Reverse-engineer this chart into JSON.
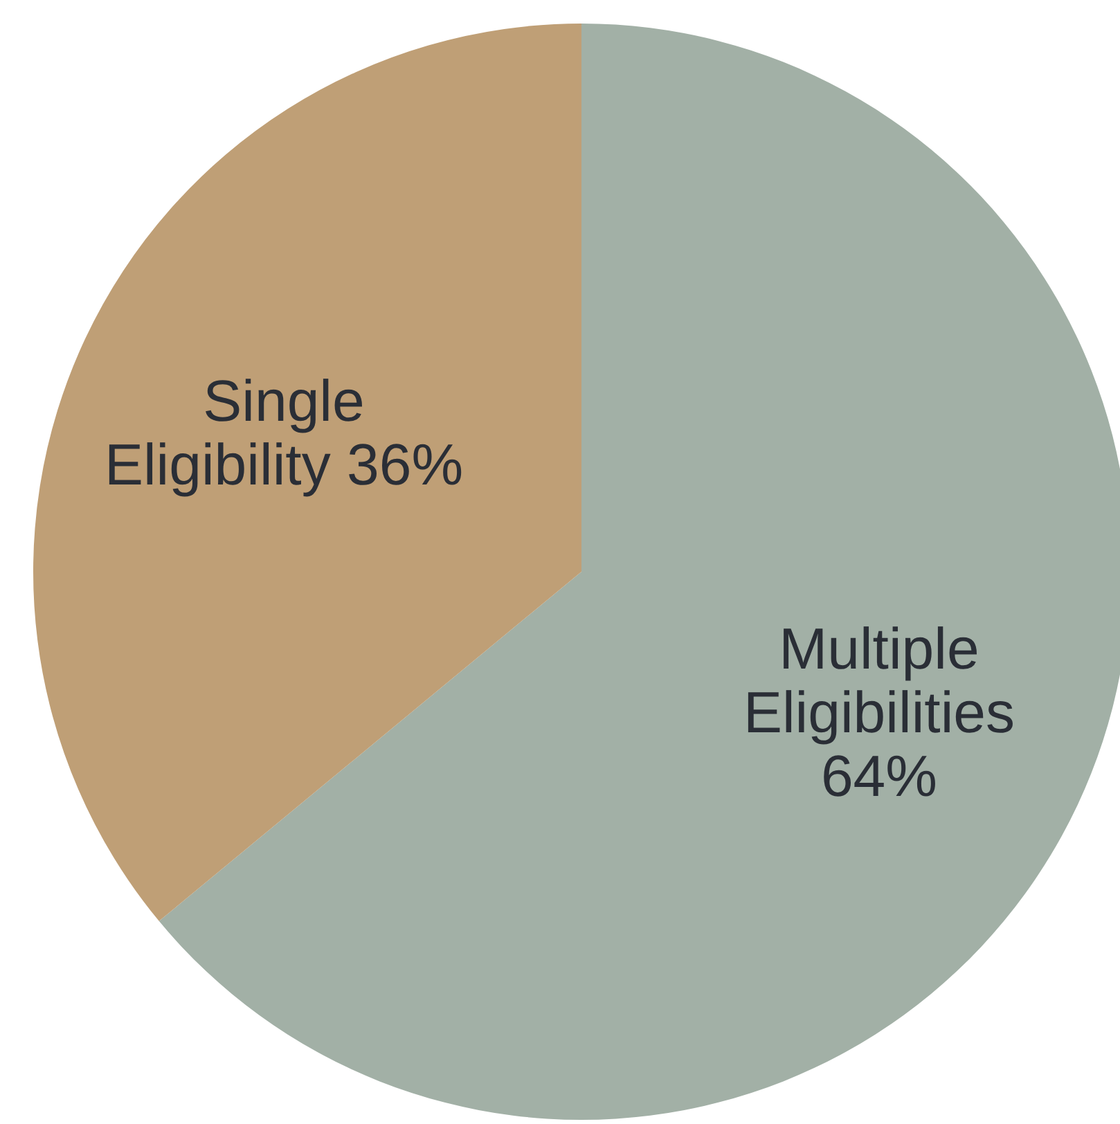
{
  "chart_data": {
    "type": "pie",
    "categories": [
      "Multiple Eligibilities",
      "Single Eligibility"
    ],
    "values": [
      64,
      36
    ],
    "colors": [
      "#a2b0a6",
      "#bf9f76"
    ],
    "value_labels": [
      "64%",
      "36%"
    ]
  }
}
